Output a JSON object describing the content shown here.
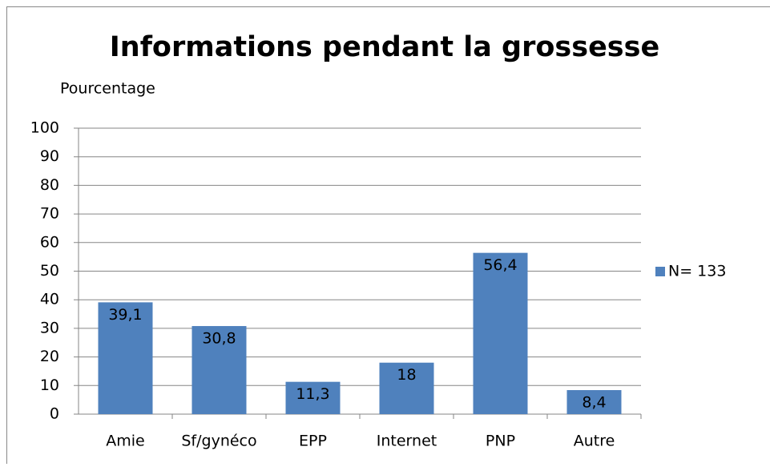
{
  "chart_data": {
    "type": "bar",
    "title": "Informations pendant la grossesse",
    "y_label": "Pourcentage",
    "categories": [
      "Amie",
      "Sf/gynéco",
      "EPP",
      "Internet",
      "PNP",
      "Autre"
    ],
    "series": [
      {
        "name": "N= 133",
        "color": "#4f81bd",
        "values": [
          39.1,
          30.8,
          11.3,
          18,
          56.4,
          8.4
        ],
        "value_labels": [
          "39,1",
          "30,8",
          "11,3",
          "18",
          "56,4",
          "8,4"
        ]
      }
    ],
    "ylim": [
      0,
      100
    ],
    "yticks": [
      0,
      10,
      20,
      30,
      40,
      50,
      60,
      70,
      80,
      90,
      100
    ],
    "grid": true,
    "legend": "right"
  }
}
